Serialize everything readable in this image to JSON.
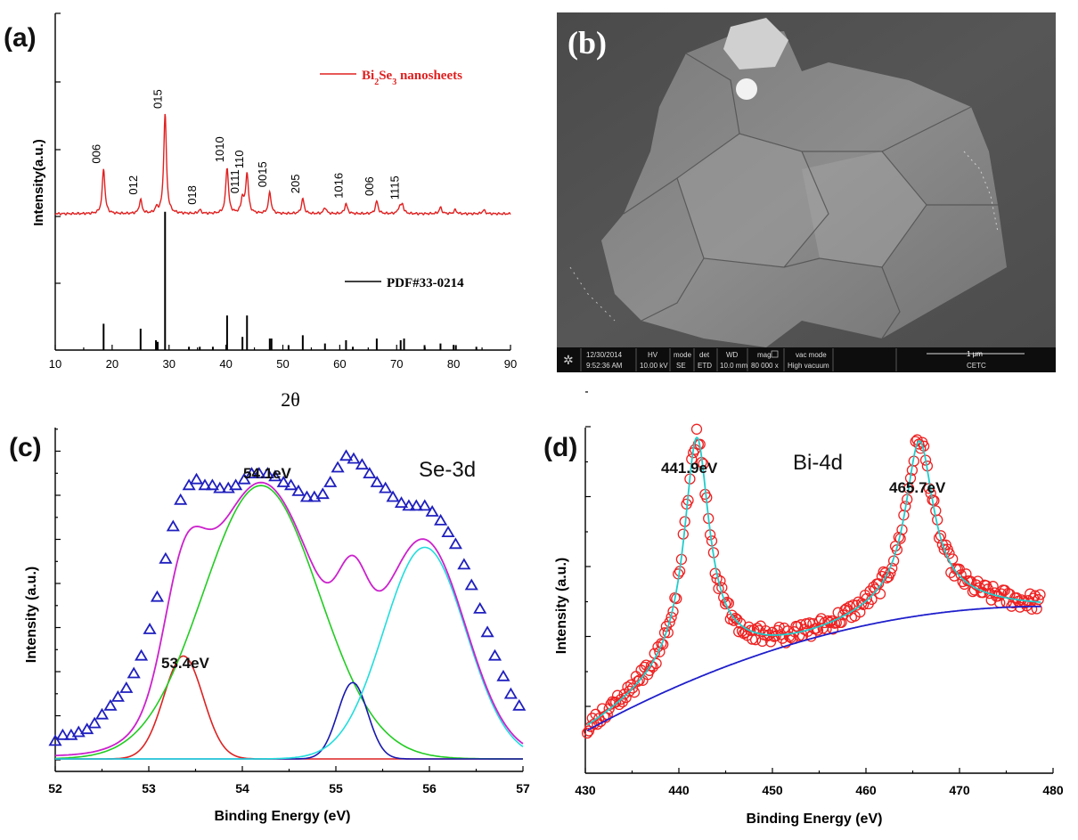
{
  "colors": {
    "xrd_sample": "#e02020",
    "xrd_ref": "#000000",
    "c_data": "#1f1fbf",
    "c_fit": "#cc22cc",
    "c_peak1": "#dd2222",
    "c_peak2": "#22cc22",
    "c_peak3": "#1818b0",
    "c_peak4": "#22dddd",
    "d_data": "#ee2222",
    "d_fit": "#22cccc",
    "d_bg": "#1f1fcc"
  },
  "panels": {
    "a": {
      "label": "(a)",
      "xlabel": "2θ",
      "ylabel": "Intensity(a.u.)"
    },
    "b": {
      "label": "(b)"
    },
    "c": {
      "label": "(c)",
      "xlabel": "Binding Energy (eV)",
      "ylabel": "Intensity (a.u.)",
      "title": "Se-3d",
      "annot1": "54.1eV",
      "annot2": "53.4eV"
    },
    "d": {
      "label": "(d)",
      "xlabel": "Binding Energy (eV)",
      "ylabel": "Intensity (a.u.)",
      "title": "Bi-4d",
      "annot1": "441.9eV",
      "annot2": "465.7eV"
    }
  },
  "legend_a": {
    "sample_prefix": "Bi",
    "sample_sub1": "2",
    "sample_mid": "Se",
    "sample_sub2": "3",
    "sample_suffix": " nanosheets",
    "ref": "PDF#33-0214"
  },
  "sem_bar": {
    "date": "12/30/2014",
    "time": "9:52:36 AM",
    "hv_label": "HV",
    "hv": "10.00 kV",
    "mode_label": "mode",
    "mode": "SE",
    "det_label": "det",
    "det": "ETD",
    "wd_label": "WD",
    "wd": "10.0 mm",
    "mag_label": "mag",
    "mag": "80 000 x",
    "vac_label": "vac mode",
    "vac": "High vacuum",
    "scale": "1 μm",
    "org": "CETC"
  },
  "chart_data": [
    {
      "type": "line",
      "title": "",
      "xlabel": "2θ",
      "ylabel": "Intensity(a.u.)",
      "xlim": [
        10,
        90
      ],
      "xticks": [
        10,
        20,
        30,
        40,
        50,
        60,
        70,
        80,
        90
      ],
      "series": [
        {
          "name": "Bi2Se3 nanosheets",
          "peaks": [
            {
              "x": 18.5,
              "h": 0.36,
              "label": "006"
            },
            {
              "x": 25.0,
              "h": 0.11,
              "label": "012"
            },
            {
              "x": 29.3,
              "h": 0.8,
              "label": "015"
            },
            {
              "x": 35.4,
              "h": 0.03,
              "label": "018"
            },
            {
              "x": 40.2,
              "h": 0.37,
              "label": "1010"
            },
            {
              "x": 42.9,
              "h": 0.12,
              "label": "0111"
            },
            {
              "x": 43.7,
              "h": 0.32,
              "label": "110"
            },
            {
              "x": 47.7,
              "h": 0.17,
              "label": "0015"
            },
            {
              "x": 53.5,
              "h": 0.12,
              "label": "205"
            },
            {
              "x": 61.1,
              "h": 0.08,
              "label": "1016"
            },
            {
              "x": 66.5,
              "h": 0.1,
              "label": "006"
            },
            {
              "x": 71.0,
              "h": 0.07,
              "label": "1115"
            },
            {
              "x": 27.8,
              "h": 0.04,
              "label": ""
            },
            {
              "x": 57.4,
              "h": 0.05,
              "label": ""
            },
            {
              "x": 77.7,
              "h": 0.05,
              "label": ""
            },
            {
              "x": 70.5,
              "h": 0.05,
              "label": ""
            },
            {
              "x": 80.3,
              "h": 0.03,
              "label": ""
            },
            {
              "x": 85.3,
              "h": 0.03,
              "label": ""
            }
          ]
        },
        {
          "name": "PDF#33-0214",
          "sticks": [
            {
              "x": 18.5,
              "h": 0.16
            },
            {
              "x": 25.0,
              "h": 0.13
            },
            {
              "x": 27.7,
              "h": 0.06
            },
            {
              "x": 28.0,
              "h": 0.05
            },
            {
              "x": 29.3,
              "h": 0.84
            },
            {
              "x": 33.5,
              "h": 0.02
            },
            {
              "x": 35.4,
              "h": 0.02
            },
            {
              "x": 37.7,
              "h": 0.02
            },
            {
              "x": 40.2,
              "h": 0.21
            },
            {
              "x": 42.9,
              "h": 0.08
            },
            {
              "x": 43.7,
              "h": 0.21
            },
            {
              "x": 47.7,
              "h": 0.07
            },
            {
              "x": 48.0,
              "h": 0.07
            },
            {
              "x": 51.0,
              "h": 0.03
            },
            {
              "x": 53.5,
              "h": 0.09
            },
            {
              "x": 57.4,
              "h": 0.04
            },
            {
              "x": 61.1,
              "h": 0.06
            },
            {
              "x": 62.3,
              "h": 0.02
            },
            {
              "x": 66.5,
              "h": 0.07
            },
            {
              "x": 70.7,
              "h": 0.06
            },
            {
              "x": 71.3,
              "h": 0.07
            },
            {
              "x": 74.9,
              "h": 0.03
            },
            {
              "x": 77.7,
              "h": 0.04
            },
            {
              "x": 80.0,
              "h": 0.03
            },
            {
              "x": 80.4,
              "h": 0.03
            },
            {
              "x": 84.0,
              "h": 0.02
            }
          ]
        }
      ]
    },
    {
      "type": "scatter",
      "title": "Se-3d",
      "xlabel": "Binding Energy (eV)",
      "ylabel": "Intensity (a.u.)",
      "xlim": [
        52,
        57
      ],
      "xticks": [
        52,
        53,
        54,
        55,
        56,
        57
      ],
      "ylim": [
        0,
        1.08
      ],
      "components": [
        {
          "center": 53.37,
          "amp": 0.35,
          "sigma": 0.21
        },
        {
          "center": 54.2,
          "amp": 0.93,
          "sigma": 0.62
        },
        {
          "center": 55.18,
          "amp": 0.26,
          "sigma": 0.16
        },
        {
          "center": 55.95,
          "amp": 0.72,
          "sigma": 0.44
        }
      ],
      "data_x": [
        52.0,
        52.08,
        52.17,
        52.25,
        52.34,
        52.42,
        52.5,
        52.59,
        52.67,
        52.76,
        52.84,
        52.92,
        53.01,
        53.09,
        53.18,
        53.26,
        53.34,
        53.43,
        53.51,
        53.6,
        53.68,
        53.76,
        53.85,
        53.93,
        54.02,
        54.1,
        54.18,
        54.27,
        54.35,
        54.44,
        54.52,
        54.6,
        54.69,
        54.77,
        54.86,
        54.94,
        55.02,
        55.11,
        55.19,
        55.28,
        55.36,
        55.44,
        55.53,
        55.61,
        55.7,
        55.78,
        55.86,
        55.95,
        56.03,
        56.12,
        56.2,
        56.28,
        56.37,
        56.45,
        56.54,
        56.62,
        56.7,
        56.79,
        56.87,
        56.96
      ],
      "data_y": [
        0.06,
        0.08,
        0.08,
        0.09,
        0.1,
        0.12,
        0.15,
        0.18,
        0.21,
        0.24,
        0.29,
        0.35,
        0.44,
        0.55,
        0.68,
        0.79,
        0.88,
        0.93,
        0.95,
        0.93,
        0.93,
        0.92,
        0.92,
        0.93,
        0.95,
        0.97,
        0.97,
        0.97,
        0.96,
        0.94,
        0.93,
        0.91,
        0.89,
        0.89,
        0.9,
        0.94,
        0.99,
        1.03,
        1.02,
        1.0,
        0.97,
        0.94,
        0.92,
        0.89,
        0.87,
        0.86,
        0.86,
        0.86,
        0.84,
        0.81,
        0.77,
        0.73,
        0.66,
        0.59,
        0.51,
        0.43,
        0.35,
        0.28,
        0.22,
        0.18
      ]
    },
    {
      "type": "scatter",
      "title": "Bi-4d",
      "xlabel": "Binding Energy (eV)",
      "ylabel": "Intensity (a.u.)",
      "xlim": [
        430,
        480
      ],
      "xticks": [
        430,
        440,
        450,
        460,
        470,
        480
      ],
      "ylim": [
        0,
        1.0
      ],
      "background": {
        "start": 0.12,
        "end": 0.48,
        "shape": "quadratic-ish"
      },
      "components": [
        {
          "center": 441.9,
          "amp": 0.69,
          "width": 1.6
        },
        {
          "center": 465.7,
          "amp": 0.5,
          "width": 1.8
        }
      ],
      "noise_seed": 7
    }
  ]
}
